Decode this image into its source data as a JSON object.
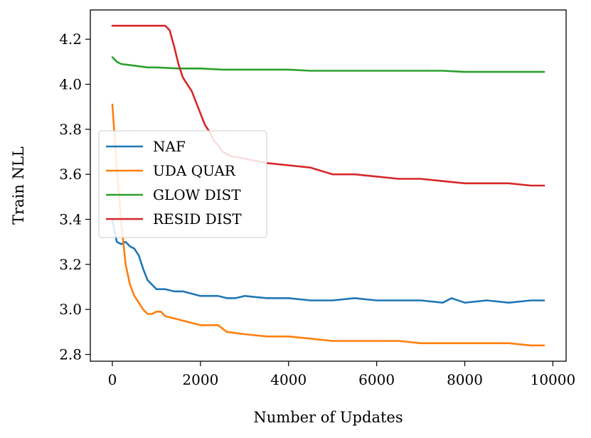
{
  "chart_data": {
    "type": "line",
    "xlabel": "Number of Updates",
    "ylabel": "Train NLL",
    "xlim": [
      -500,
      10300
    ],
    "ylim": [
      2.77,
      4.33
    ],
    "xticks": [
      0,
      2000,
      4000,
      6000,
      8000,
      10000
    ],
    "xtick_labels": [
      "0",
      "2000",
      "4000",
      "6000",
      "8000",
      "10000"
    ],
    "yticks": [
      2.8,
      3.0,
      3.2,
      3.4,
      3.6,
      3.8,
      4.0,
      4.2
    ],
    "ytick_labels": [
      "2.8",
      "3.0",
      "3.2",
      "3.4",
      "3.6",
      "3.8",
      "4.0",
      "4.2"
    ],
    "grid": false,
    "legend_position": "center-left",
    "series": [
      {
        "name": "NAF",
        "color": "#1f77b4",
        "x": [
          0,
          100,
          200,
          300,
          400,
          500,
          600,
          700,
          800,
          1000,
          1200,
          1400,
          1600,
          1800,
          2000,
          2200,
          2400,
          2600,
          2800,
          3000,
          3500,
          4000,
          4500,
          5000,
          5500,
          6000,
          6500,
          7000,
          7500,
          7700,
          8000,
          8500,
          9000,
          9500,
          9800
        ],
        "y": [
          3.4,
          3.3,
          3.29,
          3.3,
          3.28,
          3.27,
          3.24,
          3.18,
          3.13,
          3.09,
          3.09,
          3.08,
          3.08,
          3.07,
          3.06,
          3.06,
          3.06,
          3.05,
          3.05,
          3.06,
          3.05,
          3.05,
          3.04,
          3.04,
          3.05,
          3.04,
          3.04,
          3.04,
          3.03,
          3.05,
          3.03,
          3.04,
          3.03,
          3.04,
          3.04
        ]
      },
      {
        "name": "UDA QUAR",
        "color": "#ff7f0e",
        "x": [
          0,
          100,
          200,
          300,
          400,
          500,
          600,
          700,
          800,
          900,
          1000,
          1100,
          1200,
          1400,
          1600,
          1800,
          2000,
          2200,
          2400,
          2600,
          3000,
          3500,
          4000,
          4500,
          5000,
          5500,
          6000,
          6500,
          7000,
          7500,
          8000,
          8500,
          9000,
          9500,
          9800
        ],
        "y": [
          3.91,
          3.63,
          3.39,
          3.2,
          3.11,
          3.06,
          3.03,
          3.0,
          2.98,
          2.98,
          2.99,
          2.99,
          2.97,
          2.96,
          2.95,
          2.94,
          2.93,
          2.93,
          2.93,
          2.9,
          2.89,
          2.88,
          2.88,
          2.87,
          2.86,
          2.86,
          2.86,
          2.86,
          2.85,
          2.85,
          2.85,
          2.85,
          2.85,
          2.84,
          2.84
        ]
      },
      {
        "name": "GLOW DIST",
        "color": "#2ca02c",
        "x": [
          0,
          100,
          200,
          400,
          600,
          800,
          1000,
          1500,
          2000,
          2500,
          3000,
          3500,
          4000,
          4500,
          5000,
          5500,
          6000,
          6500,
          7000,
          7500,
          8000,
          8500,
          9000,
          9500,
          9800
        ],
        "y": [
          4.12,
          4.1,
          4.09,
          4.085,
          4.08,
          4.075,
          4.075,
          4.07,
          4.07,
          4.065,
          4.065,
          4.065,
          4.065,
          4.06,
          4.06,
          4.06,
          4.06,
          4.06,
          4.06,
          4.06,
          4.055,
          4.055,
          4.055,
          4.055,
          4.055
        ]
      },
      {
        "name": "RESID DIST",
        "color": "#d62728",
        "x": [
          0,
          300,
          600,
          900,
          1200,
          1300,
          1400,
          1500,
          1600,
          1700,
          1800,
          1900,
          2000,
          2100,
          2200,
          2300,
          2400,
          2500,
          2700,
          3000,
          3500,
          4000,
          4500,
          5000,
          5500,
          6000,
          6500,
          7000,
          7500,
          8000,
          8500,
          9000,
          9500,
          9800
        ],
        "y": [
          4.26,
          4.26,
          4.26,
          4.26,
          4.26,
          4.24,
          4.17,
          4.09,
          4.03,
          4.0,
          3.97,
          3.92,
          3.87,
          3.82,
          3.79,
          3.75,
          3.73,
          3.7,
          3.68,
          3.67,
          3.65,
          3.64,
          3.63,
          3.6,
          3.6,
          3.59,
          3.58,
          3.58,
          3.57,
          3.56,
          3.56,
          3.56,
          3.55,
          3.55
        ]
      }
    ]
  }
}
